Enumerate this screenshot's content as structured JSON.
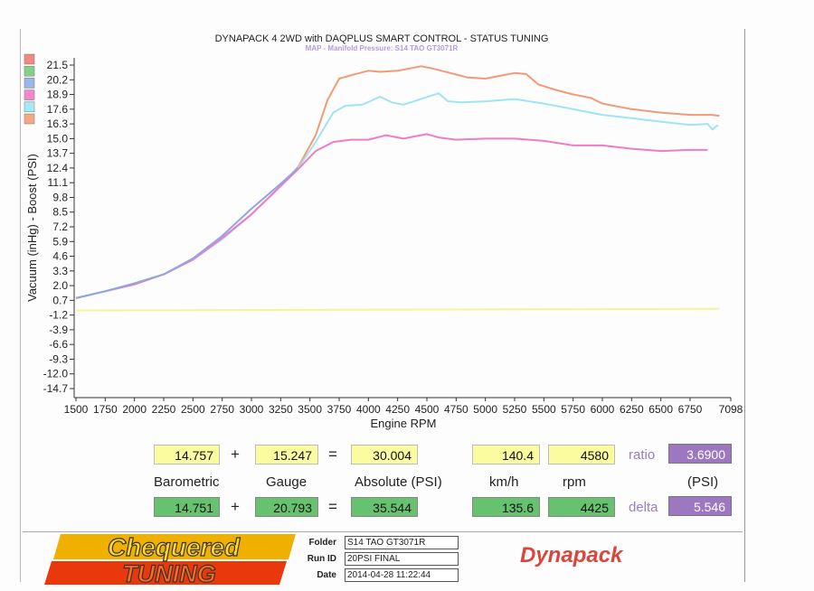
{
  "chart_data": {
    "type": "line",
    "title": "DYNAPACK 4 2WD with DAQPLUS SMART CONTROL - STATUS TUNING",
    "subtitle": "MAP - Manifold Pressure: S14 TAO GT3071R",
    "xlabel": "Engine RPM",
    "ylabel": "Vacuum (inHg) - Boost (PSI)",
    "x_ticks": [
      "1500",
      "1750",
      "2000",
      "2250",
      "2500",
      "2750",
      "3000",
      "3250",
      "3500",
      "3750",
      "4000",
      "4250",
      "4500",
      "4750",
      "5000",
      "5250",
      "5500",
      "5750",
      "6000",
      "6250",
      "6500",
      "6750",
      "7098"
    ],
    "y_ticks": [
      "21.5",
      "20.2",
      "18.9",
      "17.6",
      "16.3",
      "15.0",
      "13.7",
      "12.4",
      "11.1",
      "9.8",
      "8.5",
      "7.2",
      "5.9",
      "4.6",
      "3.3",
      "2.0",
      "0.7",
      "-1.2",
      "-3.9",
      "-6.6",
      "-9.3",
      "-12.0",
      "-14.7"
    ],
    "y_tick_values": [
      21.5,
      20.2,
      18.9,
      17.6,
      16.3,
      15.0,
      13.7,
      12.4,
      11.1,
      9.8,
      8.5,
      7.2,
      5.9,
      4.6,
      3.3,
      2.0,
      0.7,
      -1.2,
      -3.9,
      -6.6,
      -9.3,
      -12.0,
      -14.7
    ],
    "grid": false,
    "legend_colors": [
      "#f08a80",
      "#86d08c",
      "#9db4ec",
      "#f487d0",
      "#a6eaf6",
      "#f4a883"
    ],
    "series": [
      {
        "color": "#f29a78",
        "x": [
          1500,
          1750,
          2000,
          2250,
          2500,
          2750,
          3000,
          3250,
          3400,
          3550,
          3650,
          3750,
          3850,
          4000,
          4100,
          4250,
          4350,
          4450,
          4550,
          4700,
          4850,
          5000,
          5100,
          5250,
          5350,
          5450,
          5600,
          5750,
          5900,
          6000,
          6250,
          6500,
          6750,
          6940,
          7000
        ],
        "y": [
          0.9,
          1.5,
          2.2,
          3.0,
          4.3,
          6.2,
          8.3,
          10.8,
          12.5,
          15.3,
          18.4,
          20.3,
          20.6,
          21.0,
          20.9,
          21.0,
          21.2,
          21.4,
          21.2,
          20.8,
          20.4,
          20.3,
          20.5,
          20.8,
          20.7,
          19.8,
          19.3,
          18.9,
          18.6,
          18.1,
          17.6,
          17.3,
          17.1,
          17.1,
          17.0
        ]
      },
      {
        "color": "#9fe4f3",
        "x": [
          1500,
          1750,
          2000,
          2250,
          2500,
          2750,
          3000,
          3250,
          3400,
          3550,
          3700,
          3800,
          3950,
          4100,
          4200,
          4300,
          4450,
          4600,
          4680,
          4800,
          5000,
          5250,
          5500,
          5750,
          6000,
          6250,
          6500,
          6750,
          6900,
          6940,
          6990
        ],
        "y": [
          0.9,
          1.5,
          2.2,
          3.0,
          4.3,
          6.1,
          8.3,
          10.8,
          12.4,
          14.7,
          17.3,
          17.9,
          18.0,
          18.7,
          18.2,
          18.0,
          18.5,
          19.0,
          18.3,
          18.2,
          18.3,
          18.5,
          18.1,
          17.6,
          17.1,
          16.8,
          16.5,
          16.2,
          16.3,
          15.8,
          16.2
        ]
      },
      {
        "color": "#ee7cc6",
        "x": [
          1500,
          1750,
          2000,
          2250,
          2500,
          2750,
          3000,
          3250,
          3400,
          3550,
          3700,
          3850,
          4000,
          4150,
          4300,
          4500,
          4600,
          4750,
          5000,
          5250,
          5500,
          5750,
          6000,
          6250,
          6500,
          6750,
          6900
        ],
        "y": [
          0.9,
          1.5,
          2.1,
          3.0,
          4.3,
          6.2,
          8.3,
          10.8,
          12.3,
          13.9,
          14.7,
          14.9,
          14.9,
          15.3,
          15.0,
          15.4,
          15.1,
          14.9,
          15.0,
          15.0,
          14.8,
          14.4,
          14.4,
          14.1,
          13.9,
          14.0,
          14.0
        ]
      },
      {
        "color": "#8fa6e6",
        "x": [
          1500,
          1750,
          2000,
          2250,
          2500,
          2750,
          3000,
          3250,
          3400
        ],
        "y": [
          0.9,
          1.5,
          2.2,
          3.0,
          4.4,
          6.4,
          8.8,
          11.0,
          12.4
        ]
      },
      {
        "color": "#f6f39a",
        "x": [
          1500,
          7000
        ],
        "y": [
          -0.6,
          -0.4
        ]
      }
    ]
  },
  "readouts": {
    "row1": {
      "barometric": "14.757",
      "gauge": "15.247",
      "absolute": "30.004",
      "kmh": "140.4",
      "rpm": "4580",
      "ratio": "3.6900"
    },
    "row2": {
      "barometric": "14.751",
      "gauge": "20.793",
      "absolute": "35.544",
      "kmh": "135.6",
      "rpm": "4425",
      "delta": "5.546"
    },
    "labels": {
      "barometric": "Barometric",
      "gauge": "Gauge",
      "absolute": "Absolute (PSI)",
      "kmh": "km/h",
      "rpm": "rpm",
      "psi": "(PSI)",
      "ratio": "ratio",
      "delta": "delta"
    },
    "ops": {
      "plus": "+",
      "equals": "="
    }
  },
  "footer": {
    "folder_label": "Folder",
    "folder": "S14 TAO GT3071R",
    "run_label": "Run ID",
    "run": "20PSI FINAL",
    "date_label": "Date",
    "date": "2014-04-28 11:22:44",
    "logo_line1": "Chequered",
    "logo_line2": "TUNING",
    "brand": "Dynapack"
  }
}
